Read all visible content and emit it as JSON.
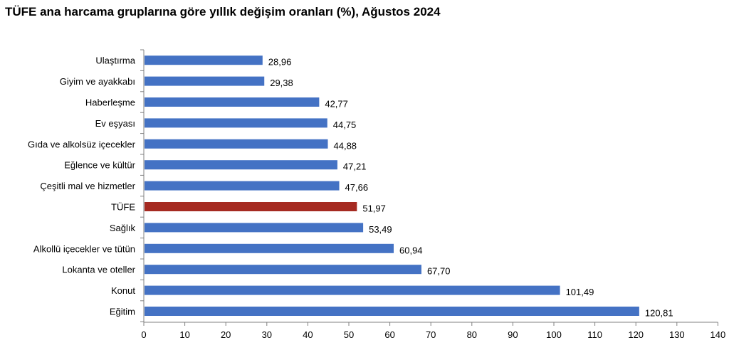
{
  "title": "TÜFE ana harcama gruplarına göre yıllık değişim oranları (%), Ağustos 2024",
  "colors": {
    "bar": "#4472C4",
    "highlight": "#A52A21",
    "axis": "#808080"
  },
  "chart_data": {
    "type": "bar",
    "orientation": "horizontal",
    "title": "TÜFE ana harcama gruplarına göre yıllık değişim oranları (%), Ağustos 2024",
    "xlabel": "",
    "ylabel": "",
    "xlim": [
      0,
      140
    ],
    "xticks": [
      0,
      10,
      20,
      30,
      40,
      50,
      60,
      70,
      80,
      90,
      100,
      110,
      120,
      130,
      140
    ],
    "grid": false,
    "highlight_category": "TÜFE",
    "categories": [
      "Ulaştırma",
      "Giyim ve ayakkabı",
      "Haberleşme",
      "Ev eşyası",
      "Gıda ve alkolsüz içecekler",
      "Eğlence ve kültür",
      "Çeşitli mal ve hizmetler",
      "TÜFE",
      "Sağlık",
      "Alkollü içecekler ve tütün",
      "Lokanta ve oteller",
      "Konut",
      "Eğitim"
    ],
    "values": [
      28.96,
      29.38,
      42.77,
      44.75,
      44.88,
      47.21,
      47.66,
      51.97,
      53.49,
      60.94,
      67.7,
      101.49,
      120.81
    ],
    "value_labels": [
      "28,96",
      "29,38",
      "42,77",
      "44,75",
      "44,88",
      "47,21",
      "47,66",
      "51,97",
      "53,49",
      "60,94",
      "67,70",
      "101,49",
      "120,81"
    ]
  }
}
